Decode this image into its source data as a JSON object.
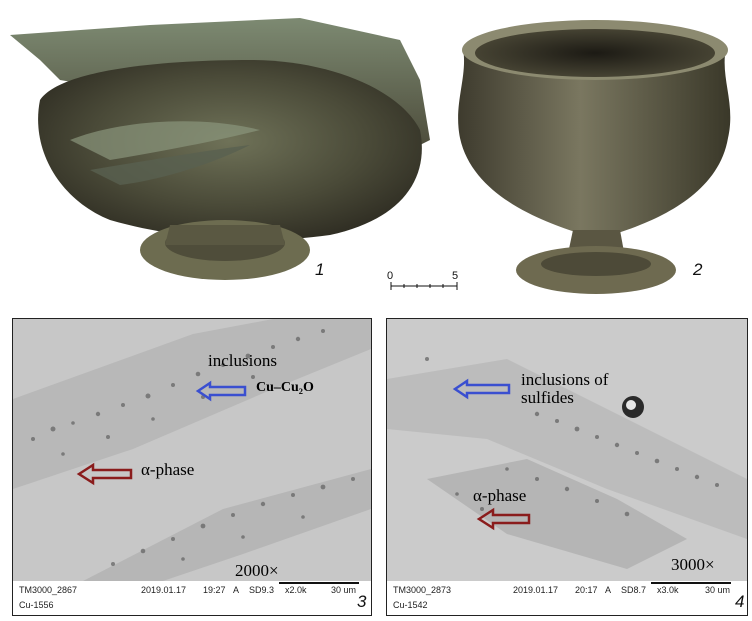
{
  "panels": {
    "photo1": {
      "label": "1"
    },
    "photo2": {
      "label": "2"
    },
    "scale": {
      "start": "0",
      "end": "5"
    },
    "sem3": {
      "label": "3",
      "inclusions_label": "inclusions",
      "inclusions_formula": "Cu–Cu₂O",
      "phase_label": "α-phase",
      "magnification": "2000×",
      "footer": {
        "image_id": "TM3000_2867",
        "date": "2019.01.17",
        "time": "19:27",
        "mode": "A",
        "detector": "SD9.3",
        "zoom": "x2.0k",
        "scalebar": "30 um",
        "sample": "Cu-1556"
      }
    },
    "sem4": {
      "label": "4",
      "inclusions_label": "inclusions of sulfides",
      "phase_label": "α-phase",
      "magnification": "3000×",
      "footer": {
        "image_id": "TM3000_2873",
        "date": "2019.01.17",
        "time": "20:17",
        "mode": "A",
        "detector": "SD8.7",
        "zoom": "x3.0k",
        "scalebar": "30 um",
        "sample": "Cu-1542"
      }
    }
  },
  "colors": {
    "blue_arrow": "#3a4fd0",
    "red_arrow": "#8a1c1c",
    "bronze_dark": "#3b3a2c",
    "bronze_mid": "#6b6a4f",
    "patina": "#7f8f77"
  }
}
